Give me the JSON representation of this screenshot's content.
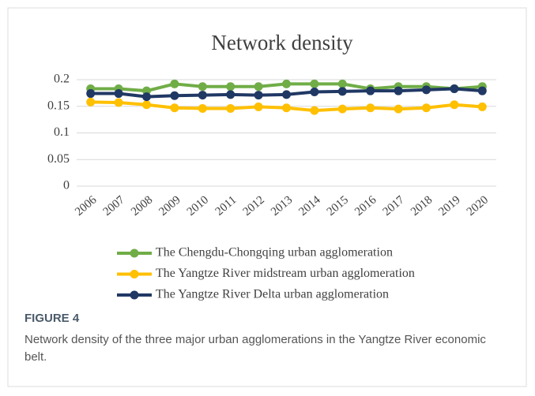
{
  "figure_label": "FIGURE 4",
  "caption": "Network density of the three major urban agglomerations in the Yangtze River economic belt.",
  "chart_data": {
    "type": "line",
    "title": "Network density",
    "categories": [
      "2006",
      "2007",
      "2008",
      "2009",
      "2010",
      "2011",
      "2012",
      "2013",
      "2014",
      "2015",
      "2016",
      "2017",
      "2018",
      "2019",
      "2020"
    ],
    "series": [
      {
        "name": "The Chengdu-Chongqing urban agglomeration",
        "color": "#70ad47",
        "values": [
          0.183,
          0.183,
          0.179,
          0.192,
          0.187,
          0.187,
          0.187,
          0.192,
          0.192,
          0.192,
          0.183,
          0.187,
          0.187,
          0.183,
          0.187
        ]
      },
      {
        "name": "The Yangtze River midstream urban agglomeration",
        "color": "#ffc000",
        "values": [
          0.158,
          0.157,
          0.153,
          0.147,
          0.146,
          0.146,
          0.149,
          0.147,
          0.142,
          0.145,
          0.147,
          0.145,
          0.147,
          0.153,
          0.149
        ]
      },
      {
        "name": "The Yangtze River Delta urban agglomeration",
        "color": "#203864",
        "values": [
          0.174,
          0.174,
          0.168,
          0.17,
          0.171,
          0.172,
          0.171,
          0.172,
          0.177,
          0.178,
          0.179,
          0.179,
          0.181,
          0.183,
          0.179
        ]
      }
    ],
    "ylim": [
      0,
      0.2
    ],
    "yticks": [
      0,
      0.05,
      0.1,
      0.15,
      0.2
    ],
    "grid": true,
    "legend": "bottom"
  }
}
